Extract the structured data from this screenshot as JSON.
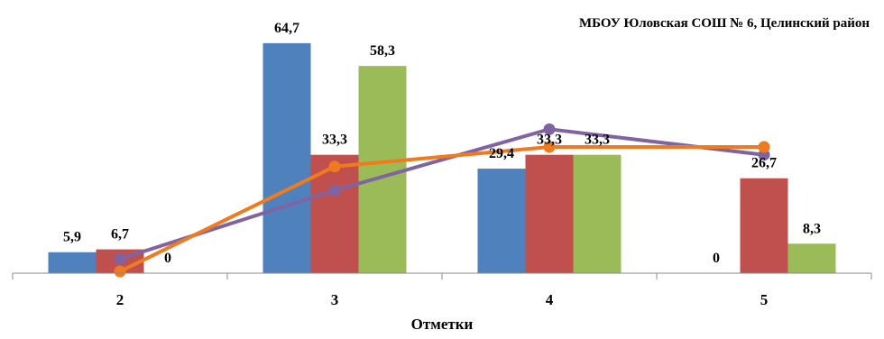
{
  "chart_data": {
    "type": "bar",
    "title": "МБОУ  Юловская СОШ № 6, Целинский район",
    "xlabel": "Отметки",
    "ylabel": "",
    "categories": [
      "2",
      "3",
      "4",
      "5"
    ],
    "ylim": [
      0,
      70
    ],
    "grid": false,
    "legend": "none",
    "bar_series": [
      {
        "color": "#4F81BD",
        "values": [
          5.9,
          64.7,
          29.4,
          0
        ],
        "labels": [
          "5,9",
          "64,7",
          "29,4",
          "0"
        ]
      },
      {
        "color": "#C0504D",
        "values": [
          6.7,
          33.3,
          33.3,
          26.7
        ],
        "labels": [
          "6,7",
          "33,3",
          "33,3",
          "26,7"
        ]
      },
      {
        "color": "#9BBB59",
        "values": [
          0,
          58.3,
          33.3,
          8.3
        ],
        "labels": [
          "0",
          "58,3",
          "33,3",
          "8,3"
        ]
      }
    ],
    "line_series": [
      {
        "color": "#8064A2",
        "values": [
          4.0,
          23.3,
          40.5,
          33.3
        ]
      },
      {
        "color": "#F07A1E",
        "values": [
          0.5,
          30.0,
          35.5,
          35.5
        ]
      }
    ]
  }
}
